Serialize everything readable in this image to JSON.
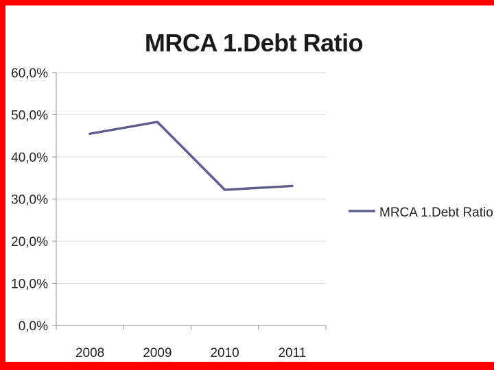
{
  "chart_data": {
    "type": "line",
    "title": "MRCA 1.Debt Ratio",
    "categories": [
      "2008",
      "2009",
      "2010",
      "2011"
    ],
    "series": [
      {
        "name": "MRCA 1.Debt Ratio",
        "values": [
          45.5,
          48.3,
          32.2,
          33.1
        ],
        "color": "#5f5c8e"
      }
    ],
    "y_ticks": [
      "0,0%",
      "10,0%",
      "20,0%",
      "30,0%",
      "40,0%",
      "50,0%",
      "60,0%"
    ],
    "ylim": [
      0,
      60
    ],
    "grid": true,
    "legend": "right"
  }
}
